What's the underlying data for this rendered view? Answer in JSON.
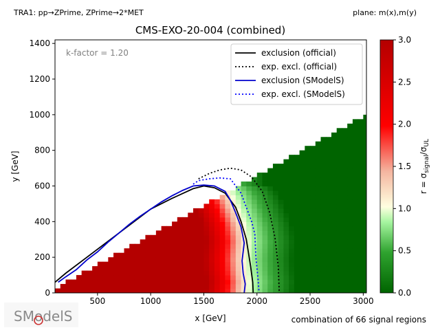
{
  "header": {
    "topology": "TRA1: pp→ZPrime, ZPrime→2*MET",
    "plane": "plane: m(x),m(y)"
  },
  "footer": {
    "signal_regions": "combination of 66 signal regions",
    "logo_text": "SModelS"
  },
  "chart_data": {
    "type": "heatmap",
    "title": "CMS-EXO-20-004 (combined)",
    "xlabel": "x [GeV]",
    "ylabel": "y [GeV]",
    "xlim": [
      100,
      3030
    ],
    "ylim": [
      0,
      1420
    ],
    "xticks": [
      500,
      1000,
      1500,
      2000,
      2500,
      3000
    ],
    "yticks": [
      0,
      200,
      400,
      600,
      800,
      1000,
      1200,
      1400
    ],
    "annotation": "k-factor = 1.20",
    "colorbar": {
      "label": "r = σ_signal/σ_UL",
      "range": [
        0.0,
        3.0
      ],
      "ticks": [
        "0.0",
        "0.5",
        "1.0",
        "1.5",
        "2.0",
        "2.5",
        "3.0"
      ],
      "colormap": [
        "#006400",
        "#ffffe0",
        "#ff0000",
        "#b40000"
      ]
    },
    "grid": false,
    "legend_position": "top-right",
    "series": [
      {
        "name": "exclusion (official)",
        "color": "#000000",
        "style": "solid",
        "x": [
          100,
          200,
          400,
          600,
          800,
          1000,
          1200,
          1400,
          1500,
          1600,
          1700,
          1800,
          1850,
          1900,
          1940,
          1960,
          1965
        ],
        "y": [
          60,
          110,
          200,
          290,
          380,
          470,
          530,
          585,
          600,
          590,
          560,
          480,
          400,
          300,
          150,
          60,
          0
        ]
      },
      {
        "name": "exp. excl. (official)",
        "color": "#000000",
        "style": "dotted",
        "x": [
          1450,
          1550,
          1650,
          1750,
          1850,
          1950,
          2050,
          2120,
          2170,
          2200,
          2210
        ],
        "y": [
          640,
          670,
          690,
          700,
          690,
          650,
          570,
          450,
          310,
          150,
          0
        ]
      },
      {
        "name": "exclusion (SModelS)",
        "color": "#0000cc",
        "style": "solid",
        "x": [
          130,
          200,
          300,
          400,
          500,
          600,
          700,
          800,
          900,
          1000,
          1100,
          1200,
          1300,
          1400,
          1500,
          1600,
          1700,
          1750,
          1800,
          1850,
          1880,
          1860,
          1870,
          1890,
          1880
        ],
        "y": [
          60,
          90,
          130,
          185,
          230,
          285,
          335,
          385,
          430,
          470,
          510,
          545,
          575,
          600,
          605,
          600,
          570,
          520,
          450,
          370,
          280,
          180,
          110,
          50,
          0
        ]
      },
      {
        "name": "exp. excl. (SModelS)",
        "color": "#0000ff",
        "style": "dotted",
        "x": [
          1400,
          1450,
          1550,
          1650,
          1750,
          1850,
          1900,
          1950,
          1980,
          1990,
          2010,
          2020
        ],
        "y": [
          610,
          630,
          640,
          645,
          640,
          560,
          480,
          400,
          330,
          200,
          80,
          0
        ]
      }
    ]
  }
}
